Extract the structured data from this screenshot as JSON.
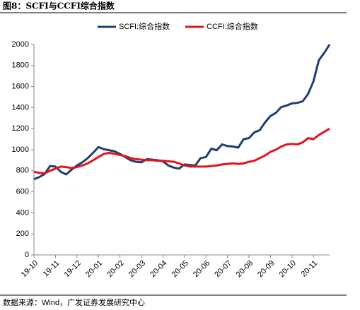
{
  "chart_data": {
    "type": "line",
    "title": "图8：SCFI与CCFI综合指数",
    "source": "数据来源：Wind，广发证券发展研究中心",
    "categories": [
      "19-10",
      null,
      null,
      null,
      "19-11",
      null,
      null,
      null,
      "19-12",
      null,
      null,
      null,
      "20-01",
      null,
      null,
      null,
      "20-02",
      null,
      null,
      null,
      "20-03",
      null,
      null,
      null,
      "20-04",
      null,
      null,
      null,
      "20-05",
      null,
      null,
      null,
      "20-06",
      null,
      null,
      null,
      "20-07",
      null,
      null,
      null,
      "20-08",
      null,
      null,
      null,
      "20-09",
      null,
      null,
      null,
      "20-10",
      null,
      null,
      null,
      "20-11",
      null,
      null,
      null
    ],
    "series": [
      {
        "name": "SCFI:综合指数",
        "color": "#1f3f6e",
        "values": [
          720,
          740,
          770,
          845,
          840,
          790,
          765,
          810,
          850,
          880,
          920,
          970,
          1025,
          1005,
          995,
          985,
          960,
          930,
          900,
          885,
          880,
          910,
          905,
          900,
          890,
          850,
          830,
          820,
          860,
          855,
          850,
          920,
          930,
          1010,
          995,
          1050,
          1035,
          1030,
          1020,
          1100,
          1110,
          1165,
          1185,
          1260,
          1320,
          1350,
          1405,
          1420,
          1440,
          1445,
          1460,
          1530,
          1650,
          1850,
          1920,
          2000
        ]
      },
      {
        "name": "CCFI:综合指数",
        "color": "#e3141b",
        "values": [
          790,
          780,
          775,
          800,
          820,
          840,
          835,
          825,
          835,
          850,
          870,
          900,
          930,
          960,
          970,
          960,
          950,
          940,
          920,
          910,
          905,
          900,
          900,
          895,
          895,
          890,
          885,
          870,
          850,
          840,
          840,
          840,
          840,
          845,
          850,
          860,
          865,
          870,
          865,
          870,
          885,
          895,
          920,
          945,
          980,
          1000,
          1030,
          1050,
          1055,
          1050,
          1070,
          1110,
          1100,
          1140,
          1170,
          1200
        ]
      }
    ],
    "ylim": [
      0,
      2000
    ],
    "yticks": [
      0,
      200,
      400,
      600,
      800,
      1000,
      1200,
      1400,
      1600,
      1800,
      2000
    ]
  }
}
